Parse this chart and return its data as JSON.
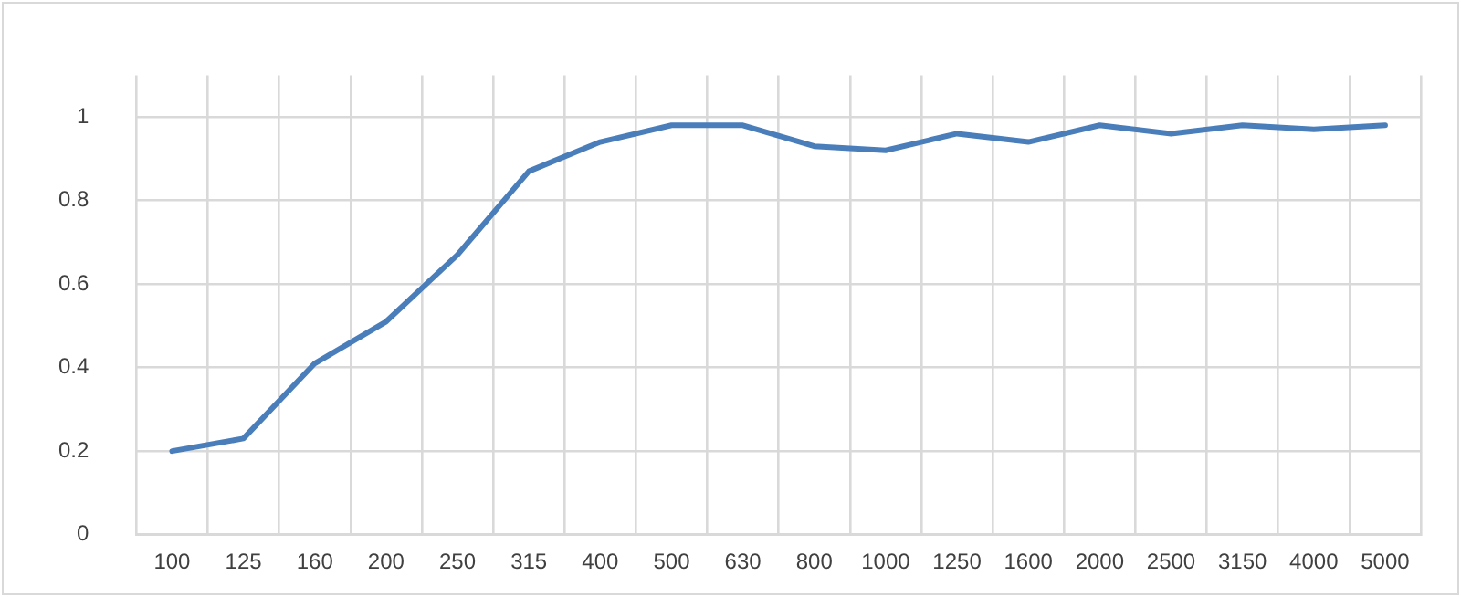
{
  "chart_data": {
    "type": "line",
    "categories": [
      "100",
      "125",
      "160",
      "200",
      "250",
      "315",
      "400",
      "500",
      "630",
      "800",
      "1000",
      "1250",
      "1600",
      "2000",
      "2500",
      "3150",
      "4000",
      "5000"
    ],
    "series": [
      {
        "color": "#4a7ebb",
        "values": [
          0.2,
          0.23,
          0.41,
          0.51,
          0.67,
          0.87,
          0.94,
          0.98,
          0.98,
          0.93,
          0.92,
          0.96,
          0.94,
          0.98,
          0.96,
          0.98,
          0.97,
          0.98
        ]
      }
    ],
    "ylim": [
      0,
      1.1
    ],
    "yticks": [
      0,
      0.2,
      0.4,
      0.6,
      0.8,
      1
    ],
    "grid": true,
    "legend": false,
    "marker": "none",
    "line_style": "solid"
  }
}
